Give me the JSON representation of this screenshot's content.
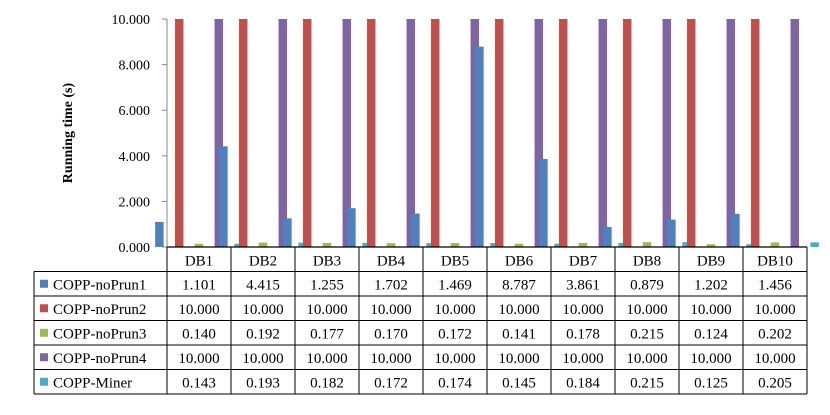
{
  "chart_data": {
    "type": "bar",
    "title": "",
    "xlabel": "",
    "ylabel": "Running time (s)",
    "ylim": [
      0,
      10
    ],
    "yticks": [
      "0.000",
      "2.000",
      "4.000",
      "6.000",
      "8.000",
      "10.000"
    ],
    "grid": false,
    "legend": "data-table",
    "categories": [
      "DB1",
      "DB2",
      "DB3",
      "DB4",
      "DB5",
      "DB6",
      "DB7",
      "DB8",
      "DB9",
      "DB10"
    ],
    "series": [
      {
        "name": "COPP-noPrun1",
        "color": "#4F81BD",
        "values": [
          1.101,
          4.415,
          1.255,
          1.702,
          1.469,
          8.787,
          3.861,
          0.879,
          1.202,
          1.456
        ],
        "labels": [
          "1.101",
          "4.415",
          "1.255",
          "1.702",
          "1.469",
          "8.787",
          "3.861",
          "0.879",
          "1.202",
          "1.456"
        ]
      },
      {
        "name": "COPP-noPrun2",
        "color": "#C0504D",
        "values": [
          10,
          10,
          10,
          10,
          10,
          10,
          10,
          10,
          10,
          10
        ],
        "labels": [
          "10.000",
          "10.000",
          "10.000",
          "10.000",
          "10.000",
          "10.000",
          "10.000",
          "10.000",
          "10.000",
          "10.000"
        ]
      },
      {
        "name": "COPP-noPrun3",
        "color": "#9BBB59",
        "values": [
          0.14,
          0.192,
          0.177,
          0.17,
          0.172,
          0.141,
          0.178,
          0.215,
          0.124,
          0.202
        ],
        "labels": [
          "0.140",
          "0.192",
          "0.177",
          "0.170",
          "0.172",
          "0.141",
          "0.178",
          "0.215",
          "0.124",
          "0.202"
        ]
      },
      {
        "name": "COPP-noPrun4",
        "color": "#8064A2",
        "values": [
          10,
          10,
          10,
          10,
          10,
          10,
          10,
          10,
          10,
          10
        ],
        "labels": [
          "10.000",
          "10.000",
          "10.000",
          "10.000",
          "10.000",
          "10.000",
          "10.000",
          "10.000",
          "10.000",
          "10.000"
        ]
      },
      {
        "name": "COPP-Miner",
        "color": "#4BACC6",
        "values": [
          0.143,
          0.193,
          0.182,
          0.172,
          0.174,
          0.145,
          0.184,
          0.215,
          0.125,
          0.205
        ],
        "labels": [
          "0.143",
          "0.193",
          "0.182",
          "0.172",
          "0.174",
          "0.145",
          "0.184",
          "0.215",
          "0.125",
          "0.205"
        ]
      }
    ]
  }
}
